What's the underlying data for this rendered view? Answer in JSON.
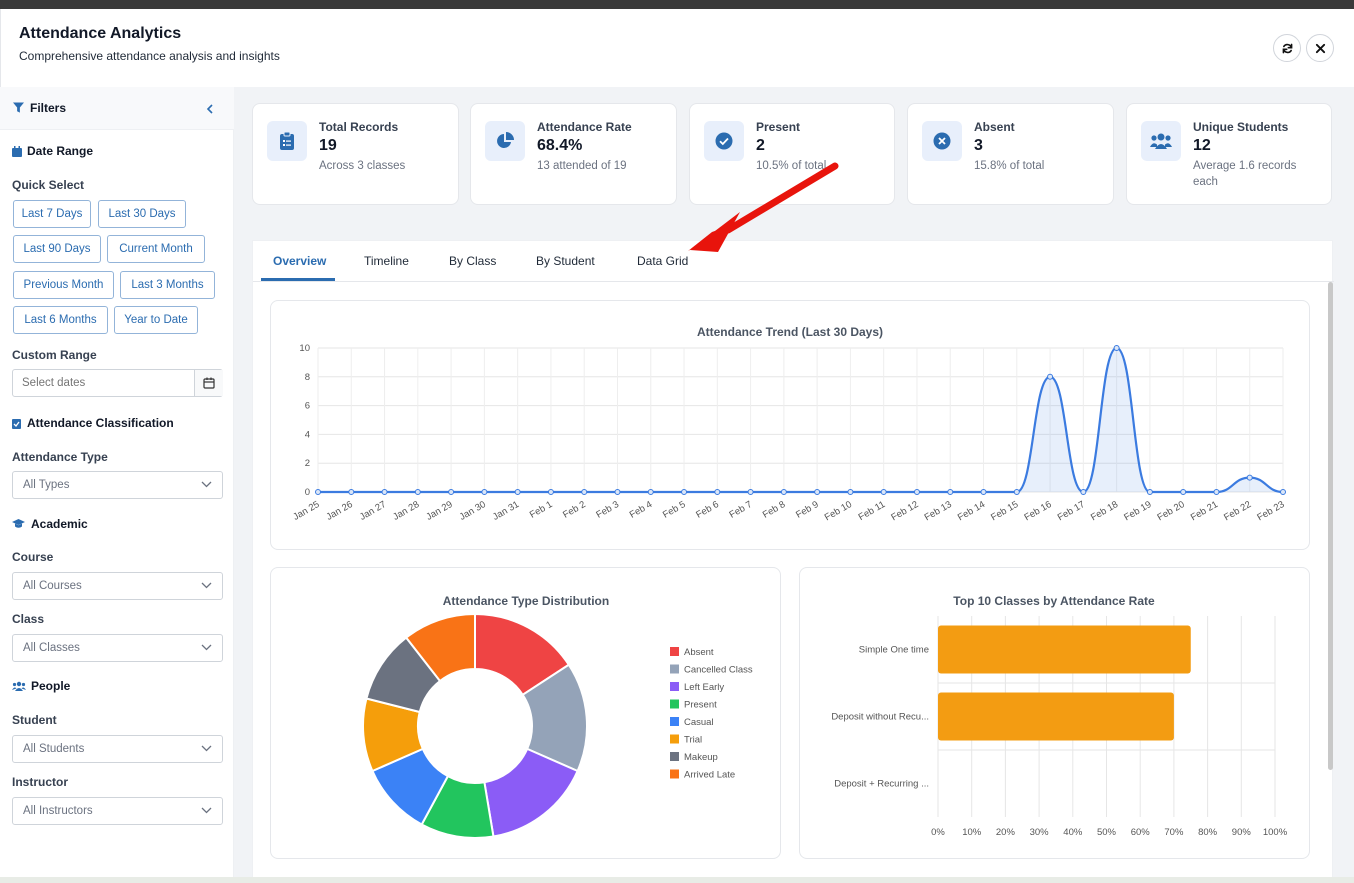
{
  "header": {
    "title": "Attendance Analytics",
    "subtitle": "Comprehensive attendance analysis and insights",
    "refresh_icon": "refresh-icon",
    "close_icon": "close-icon"
  },
  "sidebar": {
    "title": "Filters",
    "date_range": {
      "title": "Date Range",
      "quick_select_label": "Quick Select",
      "quick": [
        "Last 7 Days",
        "Last 30 Days",
        "Last 90 Days",
        "Current Month",
        "Previous Month",
        "Last 3 Months",
        "Last 6 Months",
        "Year to Date"
      ],
      "custom_label": "Custom Range",
      "custom_placeholder": "Select dates"
    },
    "attendance": {
      "title": "Attendance Classification",
      "type_label": "Attendance Type",
      "type_value": "All Types"
    },
    "academic": {
      "title": "Academic",
      "course_label": "Course",
      "course_value": "All Courses",
      "class_label": "Class",
      "class_value": "All Classes"
    },
    "people": {
      "title": "People",
      "student_label": "Student",
      "student_value": "All Students",
      "instructor_label": "Instructor",
      "instructor_value": "All Instructors"
    }
  },
  "cards": [
    {
      "title": "Total Records",
      "value": "19",
      "sub": "Across 3 classes",
      "icon": "clipboard-list-icon"
    },
    {
      "title": "Attendance Rate",
      "value": "68.4%",
      "sub": "13 attended of 19",
      "icon": "pie-chart-icon"
    },
    {
      "title": "Present",
      "value": "2",
      "sub": "10.5% of total",
      "icon": "check-circle-icon"
    },
    {
      "title": "Absent",
      "value": "3",
      "sub": "15.8% of total",
      "icon": "x-circle-icon"
    },
    {
      "title": "Unique Students",
      "value": "12",
      "sub": "Average 1.6 records each",
      "icon": "users-icon"
    }
  ],
  "tabs": [
    "Overview",
    "Timeline",
    "By Class",
    "By Student",
    "Data Grid"
  ],
  "active_tab": "Overview",
  "colors": {
    "accent": "#2b6cb0",
    "line": "#3b7be0",
    "bar": "#f39c12"
  },
  "chart_data": [
    {
      "type": "line",
      "title": "Attendance Trend (Last 30 Days)",
      "x": [
        "Jan 25",
        "Jan 26",
        "Jan 27",
        "Jan 28",
        "Jan 29",
        "Jan 30",
        "Jan 31",
        "Feb 1",
        "Feb 2",
        "Feb 3",
        "Feb 4",
        "Feb 5",
        "Feb 6",
        "Feb 7",
        "Feb 8",
        "Feb 9",
        "Feb 10",
        "Feb 11",
        "Feb 12",
        "Feb 13",
        "Feb 14",
        "Feb 15",
        "Feb 16",
        "Feb 17",
        "Feb 18",
        "Feb 19",
        "Feb 20",
        "Feb 21",
        "Feb 22",
        "Feb 23"
      ],
      "values": [
        0,
        0,
        0,
        0,
        0,
        0,
        0,
        0,
        0,
        0,
        0,
        0,
        0,
        0,
        0,
        0,
        0,
        0,
        0,
        0,
        0,
        0,
        8,
        0,
        10,
        0,
        0,
        0,
        1,
        0
      ],
      "ylim": [
        0,
        10
      ],
      "yticks": [
        0,
        2,
        4,
        6,
        8,
        10
      ],
      "grid": true
    },
    {
      "type": "pie",
      "title": "Attendance Type Distribution",
      "labels": [
        "Absent",
        "Cancelled Class",
        "Left Early",
        "Present",
        "Casual",
        "Trial",
        "Makeup",
        "Arrived Late"
      ],
      "values": [
        3,
        3,
        3,
        2,
        2,
        2,
        2,
        2
      ],
      "colors": [
        "#ef4444",
        "#94a3b8",
        "#8b5cf6",
        "#22c55e",
        "#3b82f6",
        "#f59e0b",
        "#6b7280",
        "#f97316"
      ],
      "legend": "right"
    },
    {
      "type": "bar",
      "title": "Top 10 Classes by Attendance Rate",
      "categories": [
        "Simple One time",
        "Deposit without Recu...",
        "Deposit + Recurring ..."
      ],
      "values": [
        75,
        70,
        0
      ],
      "xlim": [
        0,
        100
      ],
      "xticks": [
        "0%",
        "10%",
        "20%",
        "30%",
        "40%",
        "50%",
        "60%",
        "70%",
        "80%",
        "90%",
        "100%"
      ],
      "orientation": "horizontal",
      "grid": true
    }
  ]
}
